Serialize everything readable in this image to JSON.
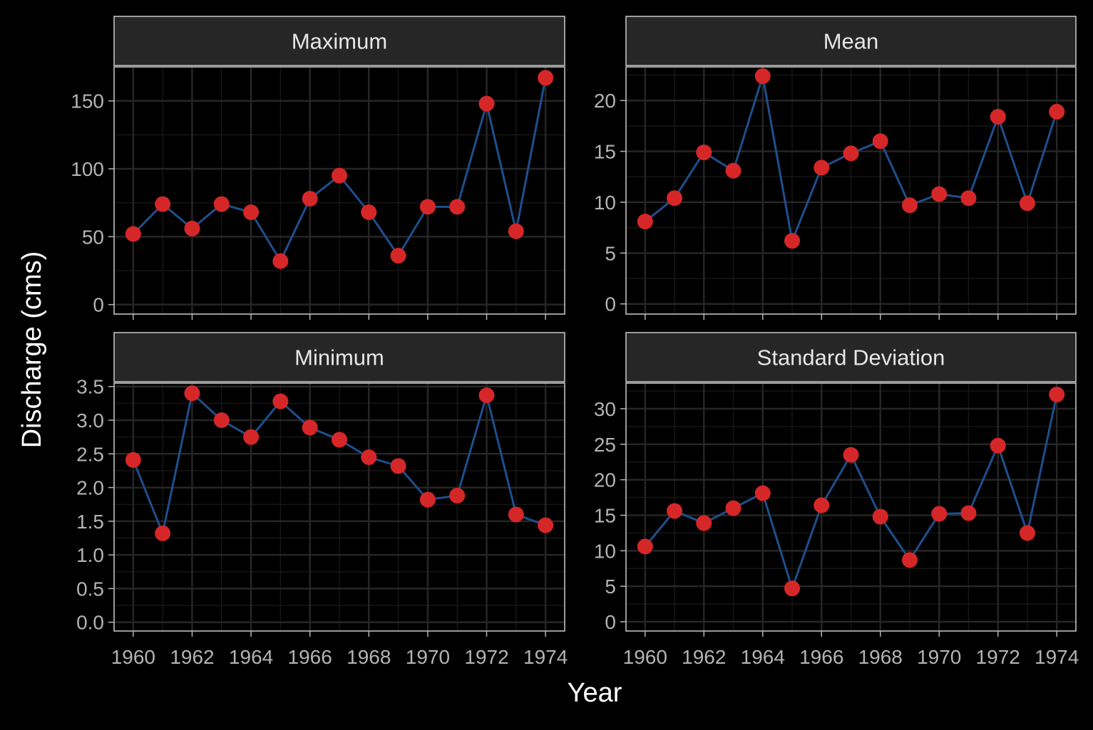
{
  "xlabel": "Year",
  "ylabel": "Discharge (cms)",
  "colors": {
    "background": "#000000",
    "panel_border": "#cccccc",
    "strip_fill": "#262626",
    "strip_text": "#e6e6e6",
    "grid_major": "#262626",
    "grid_minor": "#161616",
    "tick_text": "#b3b3b3",
    "axis_title": "#ffffff",
    "line": "#1f4e8c",
    "point": "#d62728"
  },
  "chart_data": [
    {
      "type": "line",
      "panel": "Maximum",
      "x": [
        1960,
        1961,
        1962,
        1963,
        1964,
        1965,
        1966,
        1967,
        1968,
        1969,
        1970,
        1971,
        1972,
        1973,
        1974
      ],
      "y": [
        52,
        74,
        56,
        74,
        68,
        32,
        78,
        95,
        68,
        36,
        72,
        72,
        148,
        54,
        167
      ],
      "ylim": [
        -7,
        175
      ],
      "yticks": [
        0,
        50,
        100,
        150
      ],
      "ytick_labels": [
        "0",
        "50",
        "100",
        "150"
      ],
      "xticks": [
        1960,
        1962,
        1964,
        1966,
        1968,
        1970,
        1972,
        1974
      ],
      "xtick_labels": [
        "1960",
        "1962",
        "1964",
        "1966",
        "1968",
        "1970",
        "1972",
        "1974"
      ],
      "show_x_labels": false
    },
    {
      "type": "line",
      "panel": "Mean",
      "x": [
        1960,
        1961,
        1962,
        1963,
        1964,
        1965,
        1966,
        1967,
        1968,
        1969,
        1970,
        1971,
        1972,
        1973,
        1974
      ],
      "y": [
        8.1,
        10.4,
        14.9,
        13.1,
        22.4,
        6.2,
        13.4,
        14.8,
        16.0,
        9.7,
        10.8,
        10.4,
        18.4,
        9.9,
        18.9
      ],
      "ylim": [
        -1,
        23.3
      ],
      "yticks": [
        0,
        5,
        10,
        15,
        20
      ],
      "ytick_labels": [
        "0",
        "5",
        "10",
        "15",
        "20"
      ],
      "xticks": [
        1960,
        1962,
        1964,
        1966,
        1968,
        1970,
        1972,
        1974
      ],
      "xtick_labels": [
        "1960",
        "1962",
        "1964",
        "1966",
        "1968",
        "1970",
        "1972",
        "1974"
      ],
      "show_x_labels": false
    },
    {
      "type": "line",
      "panel": "Minimum",
      "x": [
        1960,
        1961,
        1962,
        1963,
        1964,
        1965,
        1966,
        1967,
        1968,
        1969,
        1970,
        1971,
        1972,
        1973,
        1974
      ],
      "y": [
        2.41,
        1.32,
        3.4,
        3.0,
        2.75,
        3.28,
        2.89,
        2.71,
        2.45,
        2.32,
        1.82,
        1.88,
        3.37,
        1.6,
        1.44
      ],
      "ylim": [
        -0.13,
        3.55
      ],
      "yticks": [
        0,
        0.5,
        1,
        1.5,
        2,
        2.5,
        3,
        3.5
      ],
      "ytick_labels": [
        "0.0",
        "0.5",
        "1.0",
        "1.5",
        "2.0",
        "2.5",
        "3.0",
        "3.5"
      ],
      "xticks": [
        1960,
        1962,
        1964,
        1966,
        1968,
        1970,
        1972,
        1974
      ],
      "xtick_labels": [
        "1960",
        "1962",
        "1964",
        "1966",
        "1968",
        "1970",
        "1972",
        "1974"
      ],
      "show_x_labels": true
    },
    {
      "type": "line",
      "panel": "Standard Deviation",
      "x": [
        1960,
        1961,
        1962,
        1963,
        1964,
        1965,
        1966,
        1967,
        1968,
        1969,
        1970,
        1971,
        1972,
        1973,
        1974
      ],
      "y": [
        10.6,
        15.6,
        13.9,
        16.0,
        18.1,
        4.7,
        16.4,
        23.5,
        14.8,
        8.7,
        15.2,
        15.3,
        24.8,
        12.5,
        32.0
      ],
      "ylim": [
        -1.3,
        33.6
      ],
      "yticks": [
        0,
        5,
        10,
        15,
        20,
        25,
        30
      ],
      "ytick_labels": [
        "0",
        "5",
        "10",
        "15",
        "20",
        "25",
        "30"
      ],
      "xticks": [
        1960,
        1962,
        1964,
        1966,
        1968,
        1970,
        1972,
        1974
      ],
      "xtick_labels": [
        "1960",
        "1962",
        "1964",
        "1966",
        "1968",
        "1970",
        "1972",
        "1974"
      ],
      "show_x_labels": true
    }
  ]
}
